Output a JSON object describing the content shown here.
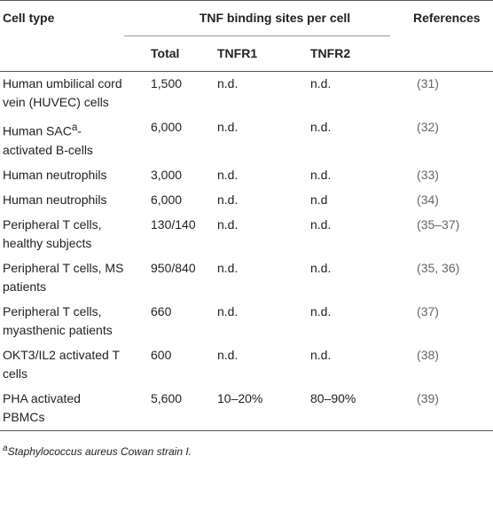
{
  "table": {
    "headers": {
      "cell_type": "Cell type",
      "group": "TNF binding sites per cell",
      "references": "References",
      "total": "Total",
      "tnfr1": "TNFR1",
      "tnfr2": "TNFR2"
    },
    "rows": [
      [
        "Human umbilical cord vein (HUVEC) cells",
        "1,500",
        "n.d.",
        "n.d.",
        "(31)"
      ],
      [
        {
          "text": "Human SAC",
          "sup": "a",
          "rest": "-activated B-cells"
        },
        "6,000",
        "n.d.",
        "n.d.",
        "(32)"
      ],
      [
        "Human neutrophils",
        "3,000",
        "n.d.",
        "n.d.",
        "(33)"
      ],
      [
        "Human neutrophils",
        "6,000",
        "n.d.",
        "n.d",
        "(34)"
      ],
      [
        "Peripheral T cells, healthy subjects",
        "130/140",
        "n.d.",
        "n.d.",
        "(35–37)"
      ],
      [
        "Peripheral T cells, MS patients",
        "950/840",
        "n.d.",
        "n.d.",
        "(35, 36)"
      ],
      [
        "Peripheral T cells, myasthenic patients",
        "660",
        "n.d.",
        "n.d.",
        "(37)"
      ],
      [
        "OKT3/IL2 activated T cells",
        "600",
        "n.d.",
        "n.d.",
        "(38)"
      ],
      [
        "PHA activated PBMCs",
        "5,600",
        "10–20%",
        "80–90%",
        "(39)"
      ]
    ],
    "footnote": {
      "mark": "a",
      "text": "Staphylococcus aureus Cowan strain I."
    }
  }
}
